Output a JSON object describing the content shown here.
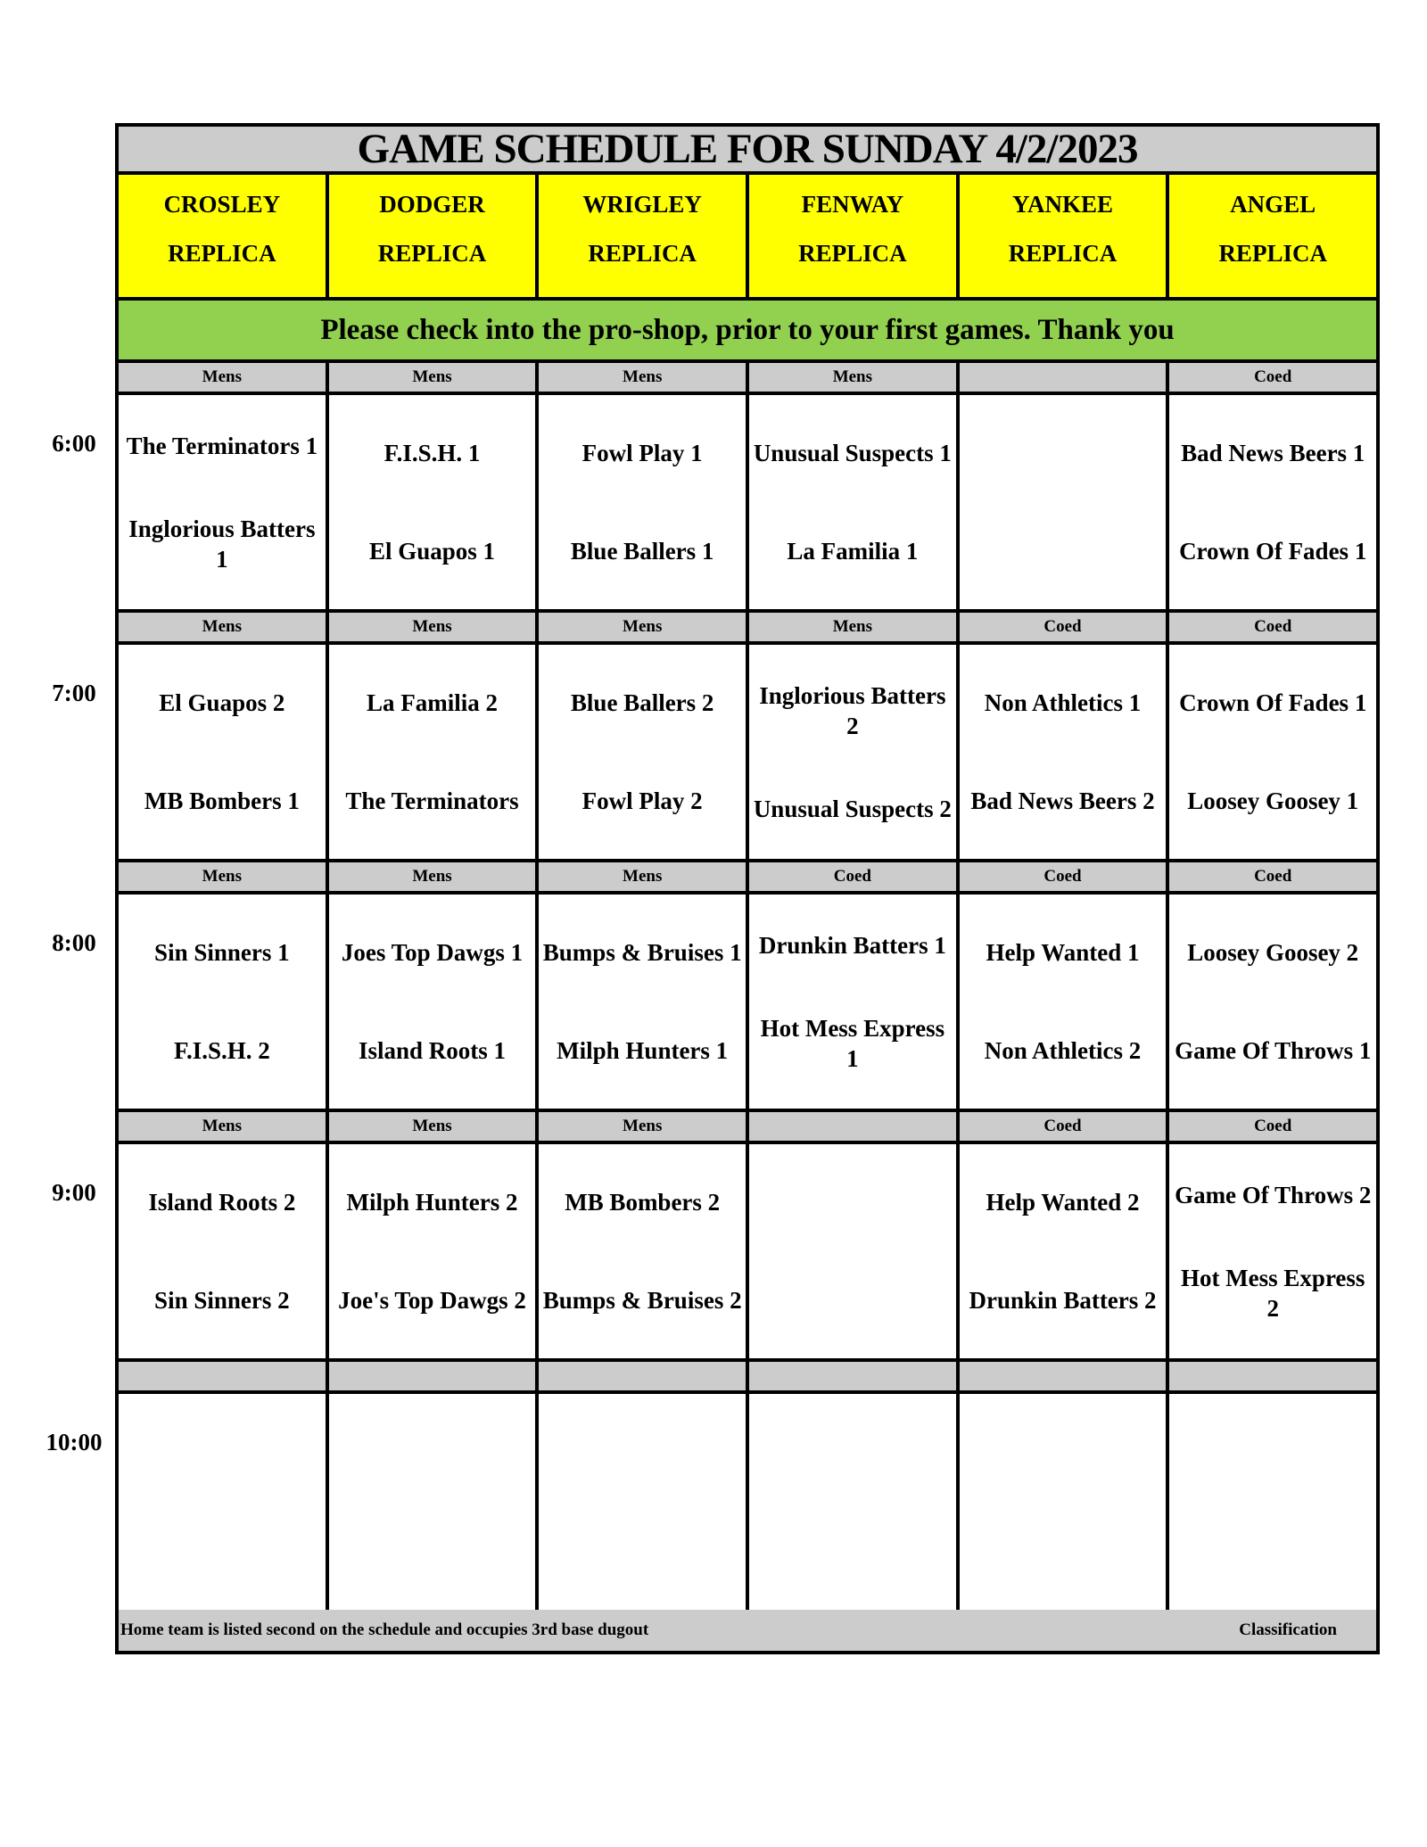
{
  "title": "GAME SCHEDULE FOR SUNDAY 4/2/2023",
  "fields": [
    {
      "name": "CROSLEY",
      "sub": "REPLICA"
    },
    {
      "name": "DODGER",
      "sub": "REPLICA"
    },
    {
      "name": "WRIGLEY",
      "sub": "REPLICA"
    },
    {
      "name": "FENWAY",
      "sub": "REPLICA"
    },
    {
      "name": "YANKEE",
      "sub": "REPLICA"
    },
    {
      "name": "ANGEL",
      "sub": "REPLICA"
    }
  ],
  "notice": "Please check into the pro-shop, prior to your first games. Thank you",
  "slots": [
    {
      "time": "6:00",
      "classes": [
        "Mens",
        "Mens",
        "Mens",
        "Mens",
        "",
        "Coed"
      ],
      "games": [
        [
          "The Terminators 1",
          "Inglorious Batters 1"
        ],
        [
          "F.I.S.H. 1",
          "El Guapos 1"
        ],
        [
          "Fowl Play 1",
          "Blue Ballers 1"
        ],
        [
          "Unusual Suspects 1",
          "La Familia 1"
        ],
        [
          "",
          ""
        ],
        [
          "Bad News Beers 1",
          "Crown Of Fades 1"
        ]
      ]
    },
    {
      "time": "7:00",
      "classes": [
        "Mens",
        "Mens",
        "Mens",
        "Mens",
        "Coed",
        "Coed"
      ],
      "games": [
        [
          "El Guapos 2",
          "MB Bombers 1"
        ],
        [
          "La Familia 2",
          "The Terminators"
        ],
        [
          "Blue Ballers 2",
          "Fowl Play 2"
        ],
        [
          "Inglorious Batters 2",
          "Unusual Suspects 2"
        ],
        [
          "Non Athletics 1",
          "Bad News Beers 2"
        ],
        [
          "Crown Of Fades 1",
          "Loosey Goosey 1"
        ]
      ]
    },
    {
      "time": "8:00",
      "classes": [
        "Mens",
        "Mens",
        "Mens",
        "Coed",
        "Coed",
        "Coed"
      ],
      "games": [
        [
          "Sin Sinners 1",
          "F.I.S.H. 2"
        ],
        [
          "Joes Top Dawgs 1",
          "Island Roots 1"
        ],
        [
          "Bumps & Bruises 1",
          "Milph Hunters 1"
        ],
        [
          "Drunkin Batters 1",
          "Hot Mess Express 1"
        ],
        [
          "Help Wanted 1",
          "Non Athletics 2"
        ],
        [
          "Loosey Goosey 2",
          "Game Of Throws 1"
        ]
      ]
    },
    {
      "time": "9:00",
      "classes": [
        "Mens",
        "Mens",
        "Mens",
        "",
        "Coed",
        "Coed"
      ],
      "games": [
        [
          "Island Roots 2",
          "Sin Sinners 2"
        ],
        [
          "Milph Hunters 2",
          "Joe's Top Dawgs 2"
        ],
        [
          "MB Bombers 2",
          "Bumps & Bruises 2"
        ],
        [
          "",
          ""
        ],
        [
          "Help Wanted 2",
          "Drunkin Batters 2"
        ],
        [
          "Game Of Throws 2",
          "Hot Mess Express 2"
        ]
      ]
    },
    {
      "time": "10:00",
      "classes": [
        "",
        "",
        "",
        "",
        "",
        ""
      ],
      "games": [
        [
          "",
          ""
        ],
        [
          "",
          ""
        ],
        [
          "",
          ""
        ],
        [
          "",
          ""
        ],
        [
          "",
          ""
        ],
        [
          "",
          ""
        ]
      ]
    }
  ],
  "footer": {
    "note": "Home team is listed second on the schedule and occupies 3rd base dugout",
    "classification": "Classification"
  },
  "colors": {
    "header_bg": "#ffff00",
    "notice_bg": "#92d050",
    "gray": "#cccccc"
  }
}
